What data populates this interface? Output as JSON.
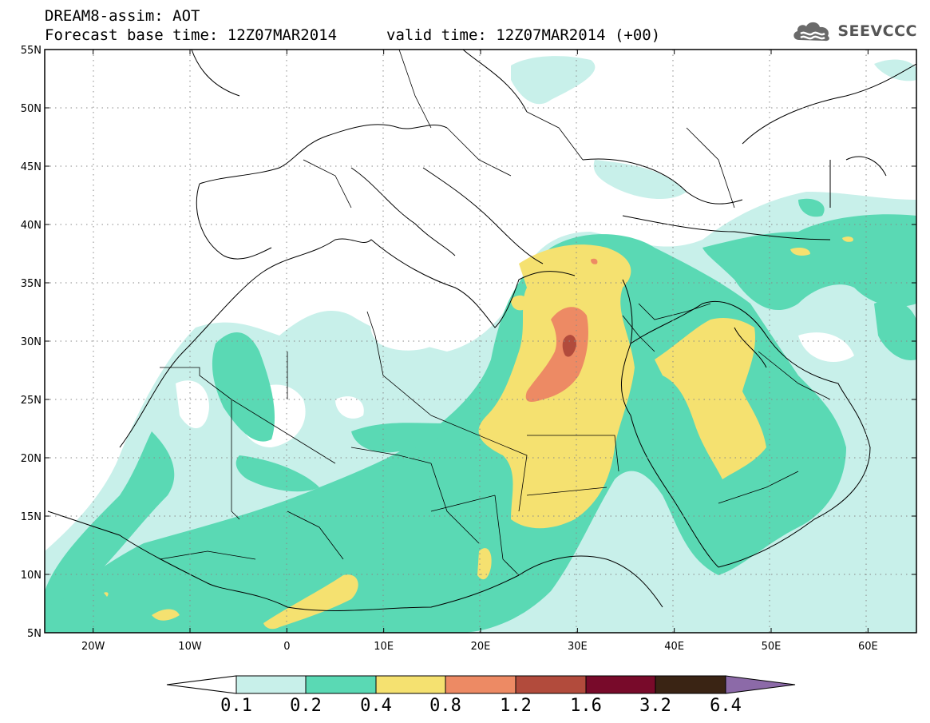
{
  "header": {
    "title": "DREAM8-assim: AOT",
    "base_time": "Forecast base time: 12Z07MAR2014",
    "valid_time": "valid time: 12Z07MAR2014 (+00)",
    "logo_text": "SEEVCCC"
  },
  "map": {
    "lon_range": [
      -25,
      65
    ],
    "lat_range": [
      5,
      55
    ],
    "lat_labels": [
      "5N",
      "10N",
      "15N",
      "20N",
      "25N",
      "30N",
      "35N",
      "40N",
      "45N",
      "50N",
      "55N"
    ],
    "lon_labels": [
      "20W",
      "10W",
      "0",
      "10E",
      "20E",
      "30E",
      "40E",
      "50E",
      "60E"
    ],
    "lat_values": [
      5,
      10,
      15,
      20,
      25,
      30,
      35,
      40,
      45,
      50,
      55
    ],
    "lon_values": [
      -20,
      -10,
      0,
      10,
      20,
      30,
      40,
      50,
      60
    ],
    "gridlines": "dotted"
  },
  "colorbar": {
    "labels": [
      "0.1",
      "0.2",
      "0.4",
      "0.8",
      "1.2",
      "1.6",
      "3.2",
      "6.4"
    ],
    "colors": [
      "#ffffff",
      "#c8f0ea",
      "#5ad9b4",
      "#f5e170",
      "#ed8a64",
      "#b24b3c",
      "#780a2a",
      "#3a2414",
      "#8c6aa8"
    ]
  },
  "colors": {
    "lightcyan": "#c8f0ea",
    "green": "#5ad9b4",
    "yellow": "#f5e170",
    "orange": "#ed8a64",
    "red": "#b24b3c"
  }
}
